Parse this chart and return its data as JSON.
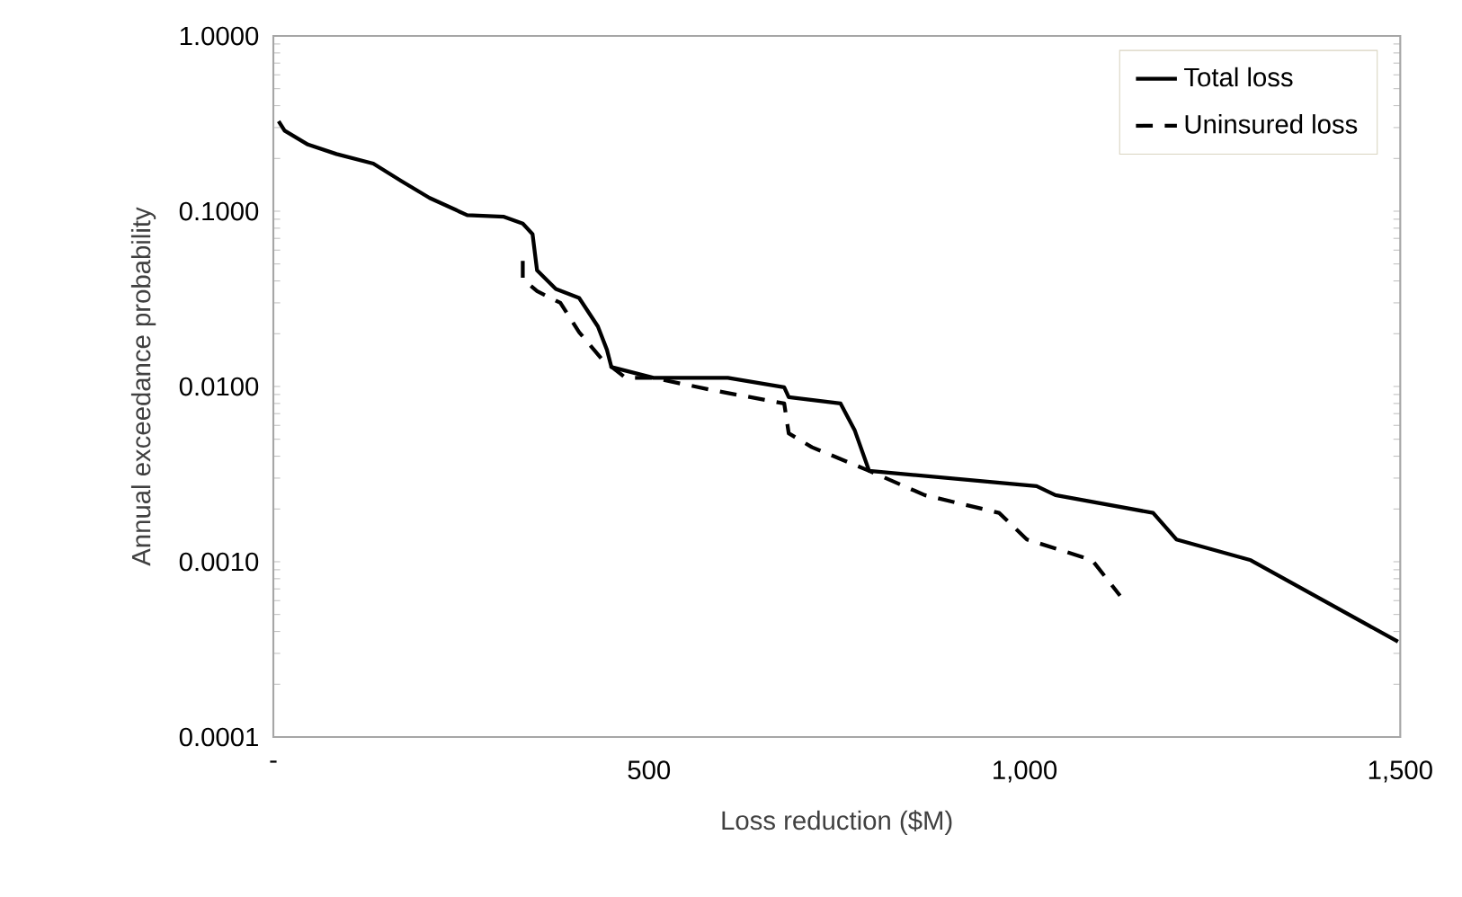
{
  "chart_data": {
    "type": "line",
    "xlabel": "Loss reduction ($M)",
    "ylabel": "Annual exceedance probability",
    "log": "y",
    "grid": false,
    "legend": "top right",
    "marker": "none",
    "xlim": [
      0,
      1500
    ],
    "ylim": [
      0.0001,
      1
    ],
    "xticks": [
      {
        "value": 0,
        "label": "-"
      },
      500,
      {
        "value": 1000,
        "label": "1,000"
      },
      {
        "value": 1500,
        "label": "1,500"
      }
    ],
    "yticks": [
      {
        "value": 0.0001,
        "label": "0.0001"
      },
      {
        "value": 0.001,
        "label": "0.0010"
      },
      {
        "value": 0.01,
        "label": "0.0100"
      },
      {
        "value": 0.1,
        "label": "0.1000"
      },
      {
        "value": 1,
        "label": "1.0000"
      }
    ],
    "series": [
      {
        "name": "Total loss",
        "color": "#000000",
        "line_style": "solid",
        "x": [
          7,
          15,
          46,
          84,
          133,
          171,
          208,
          258,
          307,
          332,
          345,
          351,
          376,
          407,
          432,
          444,
          450,
          506,
          605,
          680,
          686,
          755,
          774,
          793,
          1016,
          1041,
          1171,
          1202,
          1301,
          1497
        ],
        "values": [
          0.326,
          0.288,
          0.24,
          0.212,
          0.187,
          0.148,
          0.119,
          0.095,
          0.093,
          0.085,
          0.074,
          0.046,
          0.036,
          0.032,
          0.022,
          0.0162,
          0.0129,
          0.0112,
          0.0112,
          0.0099,
          0.0087,
          0.008,
          0.0056,
          0.0033,
          0.0027,
          0.0024,
          0.0019,
          0.00134,
          0.00102,
          0.00035
        ]
      },
      {
        "name": "Uninsured loss",
        "color": "#000000",
        "line_style": "dashed",
        "x": [
          332,
          332,
          351,
          382,
          407,
          438,
          469,
          506,
          586,
          680,
          686,
          717,
          793,
          867,
          966,
          1003,
          1090,
          1127
        ],
        "values": [
          0.052,
          0.041,
          0.035,
          0.03,
          0.0204,
          0.0142,
          0.0112,
          0.0112,
          0.0095,
          0.008,
          0.0054,
          0.0045,
          0.0033,
          0.0024,
          0.0019,
          0.00134,
          0.00102,
          0.00064
        ]
      }
    ]
  }
}
